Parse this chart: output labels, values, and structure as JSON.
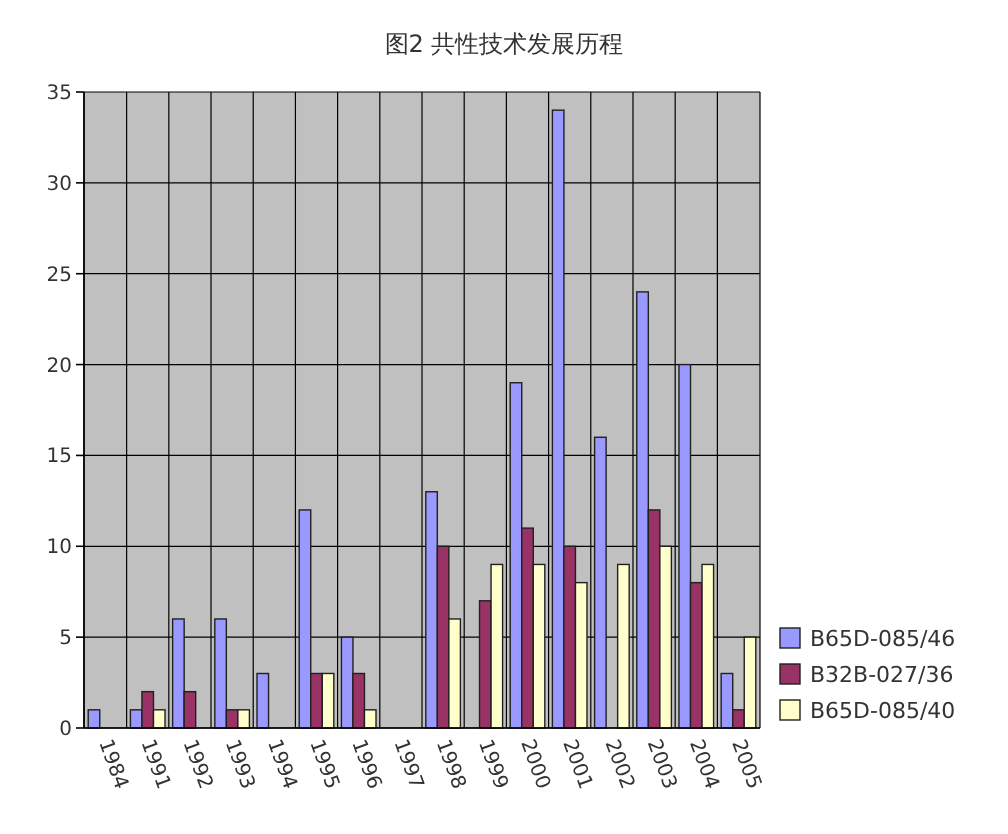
{
  "chart_data": {
    "type": "bar",
    "title": "图2 共性技术发展历程",
    "categories": [
      "1984",
      "1991",
      "1992",
      "1993",
      "1994",
      "1995",
      "1996",
      "1997",
      "1998",
      "1999",
      "2000",
      "2001",
      "2002",
      "2003",
      "2004",
      "2005"
    ],
    "series": [
      {
        "name": "B65D-085/46",
        "color": "#9999ff",
        "values": [
          1,
          1,
          6,
          6,
          3,
          12,
          5,
          null,
          13,
          null,
          19,
          34,
          16,
          24,
          20,
          3
        ]
      },
      {
        "name": "B32B-027/36",
        "color": "#993366",
        "values": [
          null,
          2,
          2,
          1,
          null,
          3,
          3,
          null,
          10,
          7,
          11,
          10,
          null,
          12,
          8,
          1
        ]
      },
      {
        "name": "B65D-085/40",
        "color": "#ffffcc",
        "values": [
          null,
          1,
          null,
          1,
          null,
          3,
          1,
          null,
          6,
          9,
          9,
          8,
          9,
          10,
          9,
          5
        ]
      }
    ],
    "ylim": [
      0,
      35
    ],
    "yticks": [
      0,
      5,
      10,
      15,
      20,
      25,
      30,
      35
    ],
    "grid": true,
    "legend": "bottom right"
  }
}
